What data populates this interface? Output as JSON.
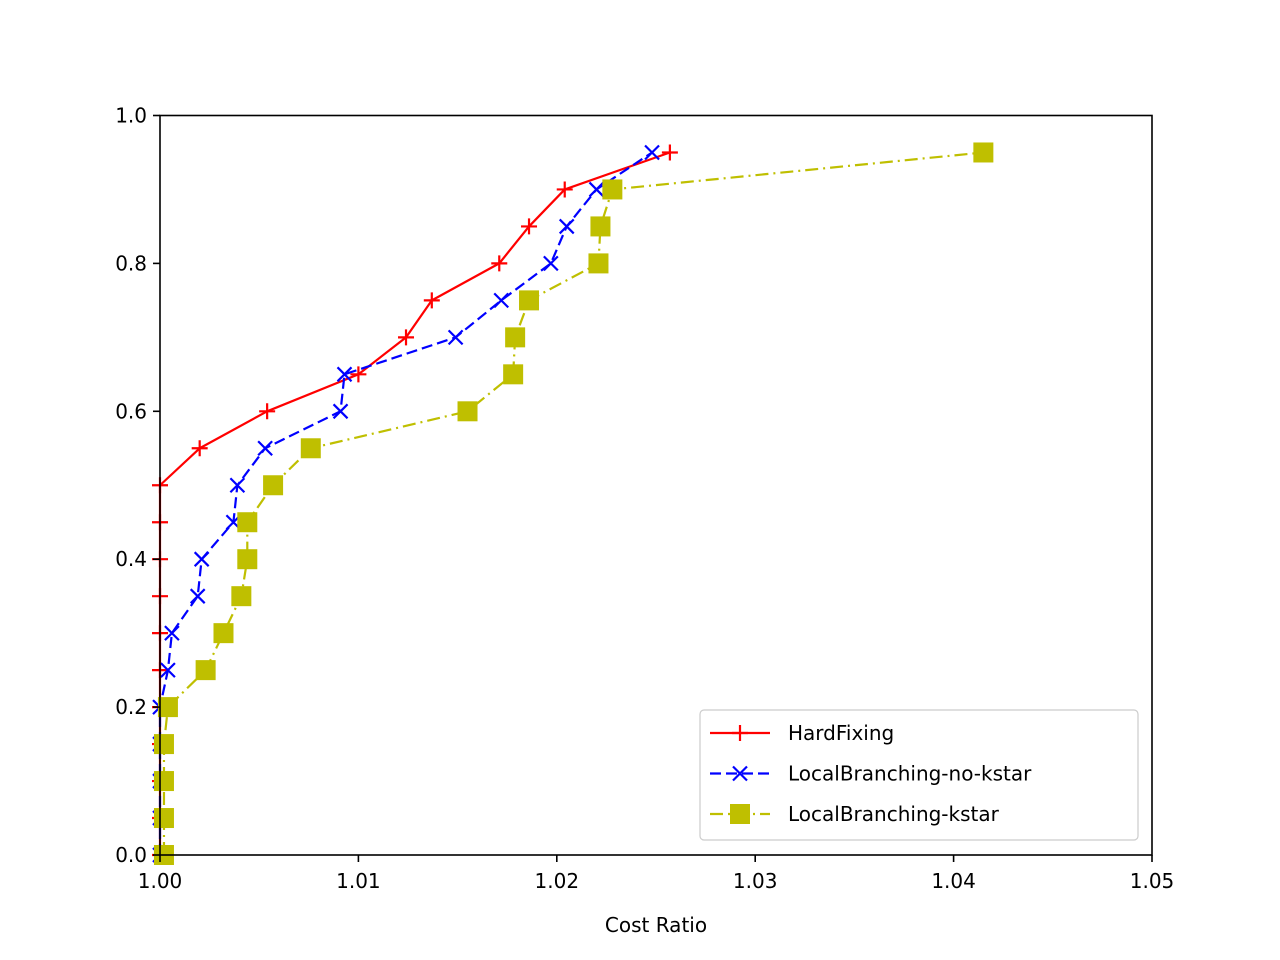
{
  "chart_data": {
    "type": "line",
    "title": "",
    "xlabel": "Cost Ratio",
    "ylabel": "",
    "xlim": [
      1.0,
      1.05
    ],
    "ylim": [
      0.0,
      1.0
    ],
    "xticks": [
      1.0,
      1.01,
      1.02,
      1.03,
      1.04,
      1.05
    ],
    "xtick_labels": [
      "1.00",
      "1.01",
      "1.02",
      "1.03",
      "1.04",
      "1.05"
    ],
    "yticks": [
      0.0,
      0.2,
      0.4,
      0.6,
      0.8,
      1.0
    ],
    "ytick_labels": [
      "0.0",
      "0.2",
      "0.4",
      "0.6",
      "0.8",
      "1.0"
    ],
    "grid": false,
    "legend_position": "lower-right",
    "series": [
      {
        "name": "HardFixing",
        "color": "#ff0000",
        "linestyle": "solid",
        "marker": "plus",
        "points": [
          [
            1.0,
            0.0
          ],
          [
            1.0,
            0.05
          ],
          [
            1.0,
            0.1
          ],
          [
            1.0,
            0.15
          ],
          [
            1.0,
            0.2
          ],
          [
            1.0,
            0.25
          ],
          [
            1.0,
            0.3
          ],
          [
            1.0,
            0.35
          ],
          [
            1.0,
            0.4
          ],
          [
            1.0,
            0.45
          ],
          [
            1.0,
            0.5
          ],
          [
            1.002,
            0.55
          ],
          [
            1.0054,
            0.6
          ],
          [
            1.01,
            0.65
          ],
          [
            1.0124,
            0.7
          ],
          [
            1.0137,
            0.75
          ],
          [
            1.0171,
            0.8
          ],
          [
            1.0186,
            0.85
          ],
          [
            1.0204,
            0.9
          ],
          [
            1.0257,
            0.95
          ]
        ]
      },
      {
        "name": "LocalBranching-no-kstar",
        "color": "#0000ff",
        "linestyle": "dashed",
        "marker": "x",
        "points": [
          [
            1.0,
            0.0
          ],
          [
            1.0,
            0.05
          ],
          [
            1.0,
            0.1
          ],
          [
            1.0,
            0.15
          ],
          [
            1.0,
            0.2
          ],
          [
            1.0004,
            0.25
          ],
          [
            1.0006,
            0.3
          ],
          [
            1.0019,
            0.35
          ],
          [
            1.0021,
            0.4
          ],
          [
            1.0037,
            0.45
          ],
          [
            1.0039,
            0.5
          ],
          [
            1.0053,
            0.55
          ],
          [
            1.0091,
            0.6
          ],
          [
            1.0093,
            0.65
          ],
          [
            1.0149,
            0.7
          ],
          [
            1.0172,
            0.75
          ],
          [
            1.0197,
            0.8
          ],
          [
            1.0205,
            0.85
          ],
          [
            1.022,
            0.9
          ],
          [
            1.0248,
            0.95
          ]
        ]
      },
      {
        "name": "LocalBranching-kstar",
        "color": "#bfbf00",
        "linestyle": "dashdot",
        "marker": "square",
        "points": [
          [
            1.0002,
            0.0
          ],
          [
            1.0002,
            0.05
          ],
          [
            1.0002,
            0.1
          ],
          [
            1.0002,
            0.15
          ],
          [
            1.0004,
            0.2
          ],
          [
            1.0023,
            0.25
          ],
          [
            1.0032,
            0.3
          ],
          [
            1.0041,
            0.35
          ],
          [
            1.0044,
            0.4
          ],
          [
            1.0044,
            0.45
          ],
          [
            1.0057,
            0.5
          ],
          [
            1.0076,
            0.55
          ],
          [
            1.0155,
            0.6
          ],
          [
            1.0178,
            0.65
          ],
          [
            1.0179,
            0.7
          ],
          [
            1.0186,
            0.75
          ],
          [
            1.0221,
            0.8
          ],
          [
            1.0222,
            0.85
          ],
          [
            1.0228,
            0.9
          ],
          [
            1.0415,
            0.95
          ]
        ]
      }
    ]
  }
}
